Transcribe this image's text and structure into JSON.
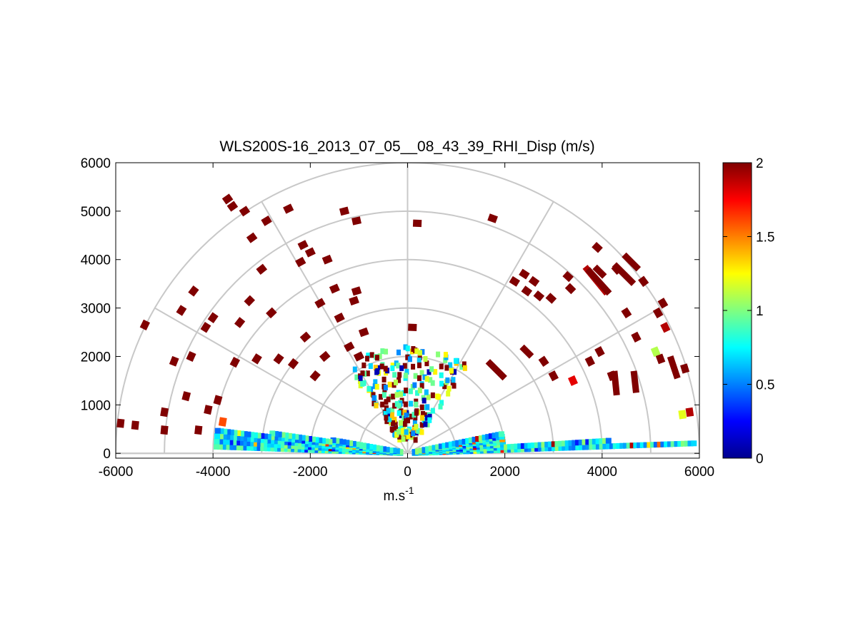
{
  "chart_data": {
    "type": "heatmap",
    "subtype": "polar-rhi-sector",
    "title": "WLS200S-16_2013_07_05__08_43_39_RHI_Disp (m/s)",
    "xlabel_base": "m.s",
    "xlabel_sup": "-1",
    "ylabel": "",
    "xlim": [
      -6000,
      6000
    ],
    "ylim": [
      -100,
      6000
    ],
    "xticks": [
      -6000,
      -4000,
      -2000,
      0,
      2000,
      4000,
      6000
    ],
    "yticks": [
      0,
      1000,
      2000,
      3000,
      4000,
      5000,
      6000
    ],
    "range_rings": [
      1000,
      2000,
      3000,
      4000,
      5000,
      6000
    ],
    "spoke_angles_deg": [
      0,
      30,
      60,
      90,
      120,
      150,
      180
    ],
    "grid": true,
    "colorbar": {
      "colormap": "jet",
      "range": [
        0,
        2
      ],
      "ticks": [
        0,
        0.5,
        1,
        1.5,
        2
      ],
      "tick_labels": [
        "0",
        "0.5",
        "1",
        "1.5",
        "2"
      ],
      "placement": "right"
    },
    "low_beam_band": {
      "description_value_typical": 0.75,
      "elevation_range_deg": [
        2,
        12
      ],
      "range_max_m": 4000
    },
    "scatter_cells": [
      {
        "x": -5900,
        "y": 620,
        "v": 2
      },
      {
        "x": -5600,
        "y": 580,
        "v": 2
      },
      {
        "x": -5400,
        "y": 2650,
        "v": 2
      },
      {
        "x": -5000,
        "y": 850,
        "v": 2
      },
      {
        "x": -5000,
        "y": 480,
        "v": 2
      },
      {
        "x": -4800,
        "y": 1900,
        "v": 2
      },
      {
        "x": -4650,
        "y": 2950,
        "v": 2
      },
      {
        "x": -4550,
        "y": 1180,
        "v": 2
      },
      {
        "x": -4450,
        "y": 2000,
        "v": 2
      },
      {
        "x": -4400,
        "y": 3350,
        "v": 2
      },
      {
        "x": -4300,
        "y": 480,
        "v": 2
      },
      {
        "x": -4150,
        "y": 2600,
        "v": 2
      },
      {
        "x": -4100,
        "y": 900,
        "v": 2
      },
      {
        "x": -4000,
        "y": 2800,
        "v": 2
      },
      {
        "x": -3900,
        "y": 1100,
        "v": 2
      },
      {
        "x": -3800,
        "y": 650,
        "v": 1.6
      },
      {
        "x": -3700,
        "y": 5250,
        "v": 2
      },
      {
        "x": -3600,
        "y": 5100,
        "v": 2
      },
      {
        "x": -3550,
        "y": 1880,
        "v": 2
      },
      {
        "x": -3450,
        "y": 2700,
        "v": 2
      },
      {
        "x": -3350,
        "y": 5000,
        "v": 2
      },
      {
        "x": -3250,
        "y": 3150,
        "v": 2
      },
      {
        "x": -3200,
        "y": 4450,
        "v": 2
      },
      {
        "x": -3100,
        "y": 1950,
        "v": 2
      },
      {
        "x": -3000,
        "y": 3800,
        "v": 2
      },
      {
        "x": -2900,
        "y": 4800,
        "v": 2
      },
      {
        "x": -2800,
        "y": 2900,
        "v": 2
      },
      {
        "x": -2650,
        "y": 1950,
        "v": 2
      },
      {
        "x": -2450,
        "y": 5050,
        "v": 2
      },
      {
        "x": -2350,
        "y": 1850,
        "v": 2
      },
      {
        "x": -2200,
        "y": 3950,
        "v": 2
      },
      {
        "x": -2150,
        "y": 4300,
        "v": 2
      },
      {
        "x": -2100,
        "y": 2400,
        "v": 2
      },
      {
        "x": -2000,
        "y": 4150,
        "v": 2
      },
      {
        "x": -1900,
        "y": 1600,
        "v": 2
      },
      {
        "x": -1800,
        "y": 3100,
        "v": 2
      },
      {
        "x": -1700,
        "y": 2000,
        "v": 2
      },
      {
        "x": -1650,
        "y": 4000,
        "v": 2
      },
      {
        "x": -1500,
        "y": 3400,
        "v": 2
      },
      {
        "x": -1400,
        "y": 2800,
        "v": 2
      },
      {
        "x": -1300,
        "y": 5000,
        "v": 2
      },
      {
        "x": -1200,
        "y": 2200,
        "v": 2
      },
      {
        "x": -1100,
        "y": 3150,
        "v": 2
      },
      {
        "x": -1050,
        "y": 4800,
        "v": 2
      },
      {
        "x": -1000,
        "y": 2000,
        "v": 2
      },
      {
        "x": -900,
        "y": 2500,
        "v": 2
      },
      {
        "x": -1050,
        "y": 3350,
        "v": 2
      },
      {
        "x": 100,
        "y": 2600,
        "v": 2
      },
      {
        "x": 200,
        "y": 4750,
        "v": 2
      },
      {
        "x": 1750,
        "y": 4850,
        "v": 2
      },
      {
        "x": 2200,
        "y": 3550,
        "v": 2
      },
      {
        "x": 2400,
        "y": 3700,
        "v": 2
      },
      {
        "x": 2450,
        "y": 3350,
        "v": 2
      },
      {
        "x": 2600,
        "y": 3550,
        "v": 2
      },
      {
        "x": 2700,
        "y": 3250,
        "v": 2
      },
      {
        "x": 2800,
        "y": 1900,
        "v": 2
      },
      {
        "x": 2950,
        "y": 3200,
        "v": 2
      },
      {
        "x": 3000,
        "y": 1600,
        "v": 2
      },
      {
        "x": 3300,
        "y": 3650,
        "v": 2
      },
      {
        "x": 3350,
        "y": 3400,
        "v": 2
      },
      {
        "x": 3400,
        "y": 1500,
        "v": 1.8
      },
      {
        "x": 3750,
        "y": 1900,
        "v": 2
      },
      {
        "x": 3900,
        "y": 4250,
        "v": 2
      },
      {
        "x": 3950,
        "y": 2100,
        "v": 2
      },
      {
        "x": 4200,
        "y": 1600,
        "v": 2
      },
      {
        "x": 4300,
        "y": 3800,
        "v": 2
      },
      {
        "x": 4500,
        "y": 2900,
        "v": 2
      },
      {
        "x": 4700,
        "y": 2400,
        "v": 2
      },
      {
        "x": 4850,
        "y": 3550,
        "v": 2
      },
      {
        "x": 5100,
        "y": 2100,
        "v": 1.1
      },
      {
        "x": 5150,
        "y": 2900,
        "v": 2
      },
      {
        "x": 5200,
        "y": 1950,
        "v": 2
      },
      {
        "x": 5250,
        "y": 3100,
        "v": 2
      },
      {
        "x": 5300,
        "y": 2600,
        "v": 1.9
      },
      {
        "x": 5700,
        "y": 1750,
        "v": 2
      },
      {
        "x": 5800,
        "y": 850,
        "v": 1.9
      },
      {
        "x": 5650,
        "y": 800,
        "v": 1.2
      }
    ],
    "streak_cells": [
      {
        "x0": 3650,
        "y0": 3850,
        "x1": 4100,
        "y1": 3300,
        "v": 1.9
      },
      {
        "x0": 3700,
        "y0": 3800,
        "x1": 4150,
        "y1": 3300,
        "v": 2
      },
      {
        "x0": 3850,
        "y0": 3850,
        "x1": 4050,
        "y1": 3650,
        "v": 2
      },
      {
        "x0": 4250,
        "y0": 3900,
        "x1": 4650,
        "y1": 3500,
        "v": 2
      },
      {
        "x0": 4450,
        "y0": 4100,
        "x1": 4750,
        "y1": 3800,
        "v": 2
      },
      {
        "x0": 5400,
        "y0": 2000,
        "x1": 5550,
        "y1": 1550,
        "v": 2
      },
      {
        "x0": 4250,
        "y0": 1700,
        "x1": 4300,
        "y1": 1200,
        "v": 2
      },
      {
        "x0": 4650,
        "y0": 1700,
        "x1": 4700,
        "y1": 1250,
        "v": 2
      },
      {
        "x0": 2350,
        "y0": 2200,
        "x1": 2550,
        "y1": 2000,
        "v": 2
      },
      {
        "x0": 1650,
        "y0": 1900,
        "x1": 2000,
        "y1": 1550,
        "v": 2
      }
    ]
  }
}
